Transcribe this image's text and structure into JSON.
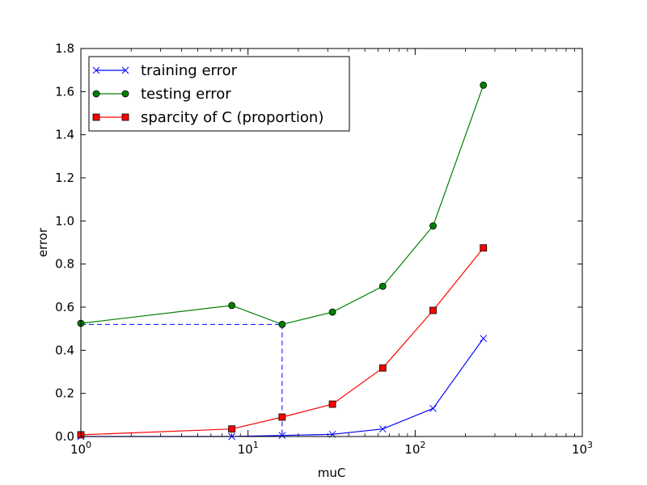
{
  "chart_data": {
    "type": "line",
    "xlabel": "muC",
    "ylabel": "error",
    "xscale": "log",
    "xlim": [
      1,
      1000
    ],
    "ylim": [
      0,
      1.8
    ],
    "x_ticks": [
      {
        "value": 1,
        "base": "10",
        "exp": "0"
      },
      {
        "value": 10,
        "base": "10",
        "exp": "1"
      },
      {
        "value": 100,
        "base": "10",
        "exp": "2"
      },
      {
        "value": 1000,
        "base": "10",
        "exp": "3"
      }
    ],
    "y_ticks": [
      {
        "value": 0.0,
        "label": "0.0"
      },
      {
        "value": 0.2,
        "label": "0.2"
      },
      {
        "value": 0.4,
        "label": "0.4"
      },
      {
        "value": 0.6,
        "label": "0.6"
      },
      {
        "value": 0.8,
        "label": "0.8"
      },
      {
        "value": 1.0,
        "label": "1.0"
      },
      {
        "value": 1.2,
        "label": "1.2"
      },
      {
        "value": 1.4,
        "label": "1.4"
      },
      {
        "value": 1.6,
        "label": "1.6"
      },
      {
        "value": 1.8,
        "label": "1.8"
      }
    ],
    "grid": false,
    "legend_position": "top-left",
    "series": [
      {
        "name": "training error",
        "color": "#0000ff",
        "marker": "x",
        "x": [
          1,
          8,
          16,
          32,
          64,
          128,
          256
        ],
        "values": [
          0.0,
          0.0,
          0.005,
          0.01,
          0.035,
          0.13,
          0.455
        ]
      },
      {
        "name": "testing error",
        "color": "#008000",
        "marker": "circle",
        "x": [
          1,
          8,
          16,
          32,
          64,
          128,
          256
        ],
        "values": [
          0.525,
          0.608,
          0.52,
          0.577,
          0.697,
          0.977,
          1.63
        ]
      },
      {
        "name": "sparcity of C (proportion)",
        "color": "#ff0000",
        "marker": "square",
        "x": [
          1,
          8,
          16,
          32,
          64,
          128,
          256
        ],
        "values": [
          0.008,
          0.035,
          0.09,
          0.15,
          0.318,
          0.585,
          0.875
        ]
      }
    ],
    "reference_line": {
      "color": "#0000ff",
      "style": "dashed",
      "x": 16,
      "y": 0.52
    }
  }
}
